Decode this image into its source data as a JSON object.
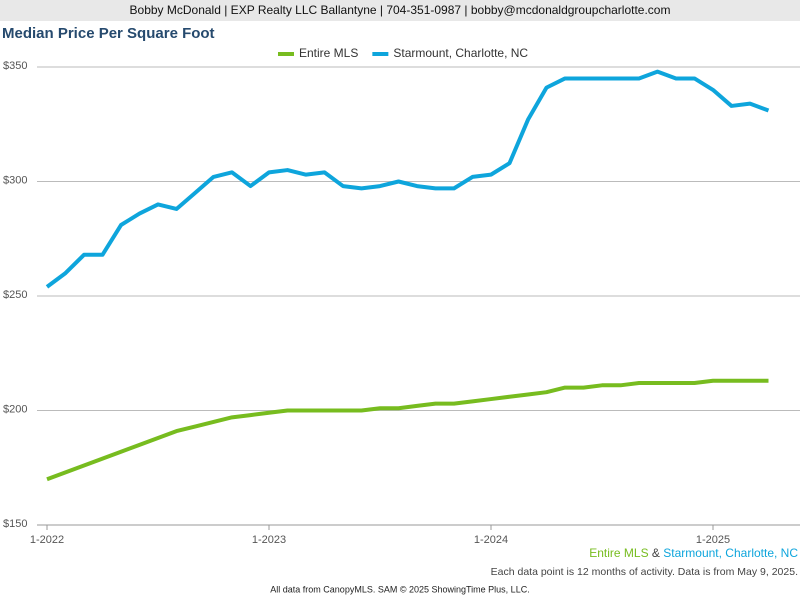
{
  "chart_data": {
    "type": "line",
    "header": "Bobby McDonald | EXP Realty LLC Ballantyne | 704-351-0987 | bobby@mcdonaldgroupcharlotte.com",
    "title": "Median Price Per Square Foot",
    "categories": [
      "1-2022",
      null,
      null,
      null,
      null,
      null,
      null,
      null,
      null,
      null,
      null,
      null,
      "1-2023",
      null,
      null,
      null,
      null,
      null,
      null,
      null,
      null,
      null,
      null,
      null,
      "1-2024",
      null,
      null,
      null,
      null,
      null,
      null,
      null,
      null,
      null,
      null,
      null,
      "1-2025",
      null,
      null,
      null
    ],
    "series": [
      {
        "name": "Entire MLS",
        "color": "#77bc1f",
        "values": [
          170,
          173,
          176,
          179,
          182,
          185,
          188,
          191,
          193,
          195,
          197,
          198,
          199,
          200,
          200,
          200,
          200,
          200,
          201,
          201,
          202,
          203,
          203,
          204,
          205,
          206,
          207,
          208,
          210,
          210,
          211,
          211,
          212,
          212,
          212,
          212,
          213,
          213,
          213,
          213
        ]
      },
      {
        "name": "Starmount, Charlotte, NC",
        "color": "#0ea5dc",
        "values": [
          254,
          260,
          268,
          268,
          281,
          286,
          290,
          288,
          295,
          302,
          304,
          298,
          304,
          305,
          303,
          304,
          298,
          297,
          298,
          300,
          298,
          297,
          297,
          302,
          303,
          308,
          327,
          341,
          345,
          345,
          345,
          345,
          345,
          348,
          345,
          345,
          340,
          333,
          334,
          331
        ]
      }
    ],
    "ylim": [
      150,
      350
    ],
    "yticks": [
      {
        "value": 150,
        "label": "$150"
      },
      {
        "value": 200,
        "label": "$200"
      },
      {
        "value": 250,
        "label": "$250"
      },
      {
        "value": 300,
        "label": "$300"
      },
      {
        "value": 350,
        "label": "$350"
      }
    ],
    "grid": true,
    "legend": "top",
    "legend_joiner": "&",
    "note": "Each data point is 12 months of activity. Data is from May 9, 2025.",
    "source": "All data from CanopyMLS. SAM © 2025 ShowingTime Plus, LLC."
  }
}
